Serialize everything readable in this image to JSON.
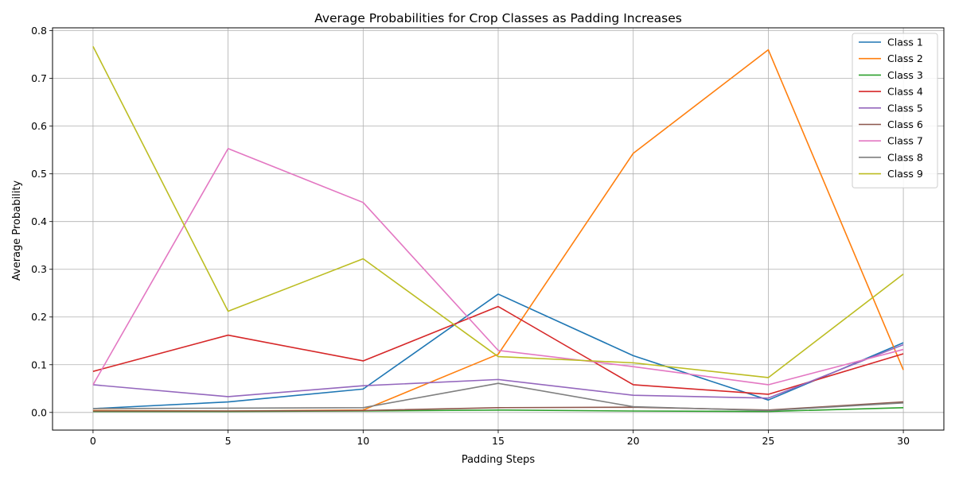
{
  "chart_data": {
    "type": "line",
    "title": "Average Probabilities for Crop Classes as Padding Increases",
    "xlabel": "Padding Steps",
    "ylabel": "Average Probability",
    "x": [
      0,
      5,
      10,
      15,
      20,
      25,
      30
    ],
    "xlim": [
      -1.5,
      31.5
    ],
    "ylim": [
      -0.037,
      0.806
    ],
    "xticks": [
      0,
      5,
      10,
      15,
      20,
      25,
      30
    ],
    "yticks": [
      0.0,
      0.1,
      0.2,
      0.3,
      0.4,
      0.5,
      0.6,
      0.7,
      0.8
    ],
    "ytick_labels": [
      "0.0",
      "0.1",
      "0.2",
      "0.3",
      "0.4",
      "0.5",
      "0.6",
      "0.7",
      "0.8"
    ],
    "grid": true,
    "legend_position": "top-right",
    "series": [
      {
        "name": "Class 1",
        "color": "#1f77b4",
        "values": [
          0.008,
          0.022,
          0.049,
          0.248,
          0.119,
          0.026,
          0.146
        ]
      },
      {
        "name": "Class 2",
        "color": "#ff7f0e",
        "values": [
          0.004,
          0.003,
          0.005,
          0.122,
          0.543,
          0.76,
          0.089
        ]
      },
      {
        "name": "Class 3",
        "color": "#2ca02c",
        "values": [
          0.002,
          0.002,
          0.003,
          0.005,
          0.003,
          0.002,
          0.01
        ]
      },
      {
        "name": "Class 4",
        "color": "#d62728",
        "values": [
          0.086,
          0.162,
          0.108,
          0.222,
          0.058,
          0.038,
          0.123
        ]
      },
      {
        "name": "Class 5",
        "color": "#9467bd",
        "values": [
          0.058,
          0.033,
          0.056,
          0.069,
          0.036,
          0.03,
          0.142
        ]
      },
      {
        "name": "Class 6",
        "color": "#8c564b",
        "values": [
          0.003,
          0.003,
          0.004,
          0.01,
          0.011,
          0.005,
          0.022
        ]
      },
      {
        "name": "Class 7",
        "color": "#e377c2",
        "values": [
          0.058,
          0.553,
          0.44,
          0.13,
          0.096,
          0.058,
          0.132
        ]
      },
      {
        "name": "Class 8",
        "color": "#7f7f7f",
        "values": [
          0.008,
          0.009,
          0.01,
          0.061,
          0.012,
          0.004,
          0.02
        ]
      },
      {
        "name": "Class 9",
        "color": "#bcbd22",
        "values": [
          0.767,
          0.212,
          0.322,
          0.117,
          0.104,
          0.073,
          0.29
        ]
      }
    ]
  }
}
